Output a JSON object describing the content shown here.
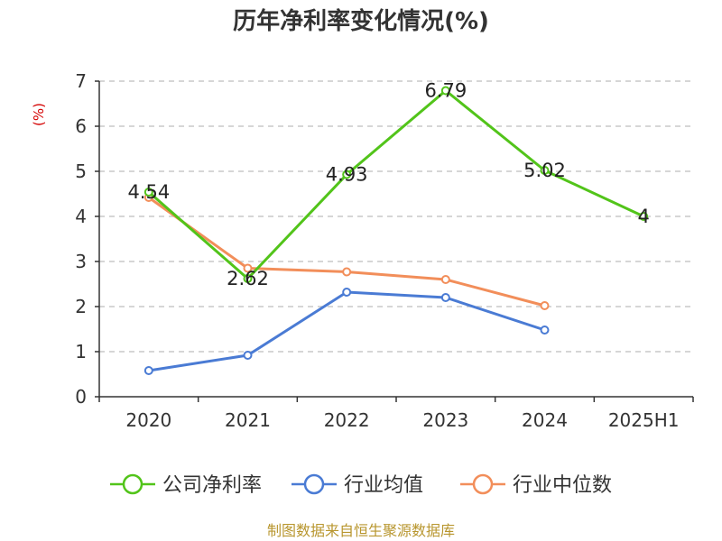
{
  "chart_data": {
    "type": "line",
    "title": "历年净利率变化情况(%)",
    "ylabel": "(%)",
    "categories": [
      "2020",
      "2021",
      "2022",
      "2023",
      "2024",
      "2025H1"
    ],
    "ylim": [
      0,
      7
    ],
    "yticks": [
      "0",
      "1",
      "2",
      "3",
      "4",
      "5",
      "6",
      "7"
    ],
    "grid": true,
    "legend_position": "bottom",
    "series": [
      {
        "name": "公司净利率",
        "color": "#52c41a",
        "values": [
          4.54,
          2.62,
          4.93,
          6.79,
          5.02,
          4
        ],
        "labels": [
          "4.54",
          "2.62",
          "4.93",
          "6.79",
          "5.02",
          "4"
        ]
      },
      {
        "name": "行业均值",
        "color": "#4a7bd4",
        "values": [
          0.58,
          0.92,
          2.32,
          2.2,
          1.48,
          null
        ]
      },
      {
        "name": "行业中位数",
        "color": "#f28e5a",
        "values": [
          4.42,
          2.85,
          2.77,
          2.6,
          2.02,
          null
        ]
      }
    ]
  },
  "source_text": "制图数据来自恒生聚源数据库"
}
